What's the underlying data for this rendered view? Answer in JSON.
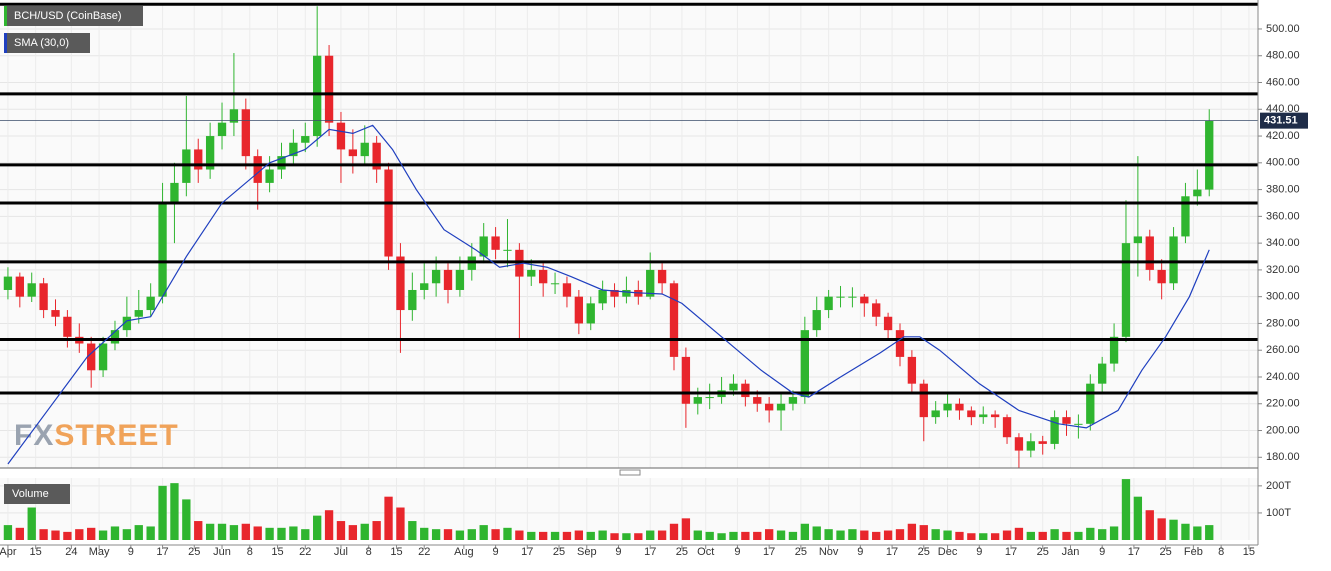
{
  "chart_data": {
    "type": "candlestick",
    "title": "BCH/USD (CoinBase)",
    "watermark": [
      "FX",
      "STREET"
    ],
    "grid": true,
    "up_color": "#2fb52f",
    "down_color": "#e8262c",
    "level_color": "#000000",
    "xlim": [
      -2,
      315.3
    ],
    "xticks": [
      {
        "value": 0,
        "label": "Apr"
      },
      {
        "value": 7,
        "label": "15"
      },
      {
        "value": 16,
        "label": "24"
      },
      {
        "value": 23,
        "label": "May"
      },
      {
        "value": 31,
        "label": "9"
      },
      {
        "value": 39,
        "label": "17"
      },
      {
        "value": 47,
        "label": "25"
      },
      {
        "value": 54,
        "label": "Jun"
      },
      {
        "value": 61,
        "label": "8"
      },
      {
        "value": 68,
        "label": "15"
      },
      {
        "value": 75,
        "label": "22"
      },
      {
        "value": 84,
        "label": "Jul"
      },
      {
        "value": 91,
        "label": "8"
      },
      {
        "value": 98,
        "label": "15"
      },
      {
        "value": 105,
        "label": "22"
      },
      {
        "value": 115,
        "label": "Aug"
      },
      {
        "value": 123,
        "label": "9"
      },
      {
        "value": 131,
        "label": "17"
      },
      {
        "value": 139,
        "label": "25"
      },
      {
        "value": 146,
        "label": "Sep"
      },
      {
        "value": 154,
        "label": "9"
      },
      {
        "value": 162,
        "label": "17"
      },
      {
        "value": 170,
        "label": "25"
      },
      {
        "value": 176,
        "label": "Oct"
      },
      {
        "value": 184,
        "label": "9"
      },
      {
        "value": 192,
        "label": "17"
      },
      {
        "value": 200,
        "label": "25"
      },
      {
        "value": 207,
        "label": "Nov"
      },
      {
        "value": 215,
        "label": "9"
      },
      {
        "value": 223,
        "label": "17"
      },
      {
        "value": 231,
        "label": "25"
      },
      {
        "value": 237,
        "label": "Dec"
      },
      {
        "value": 245,
        "label": "9"
      },
      {
        "value": 253,
        "label": "17"
      },
      {
        "value": 261,
        "label": "25"
      },
      {
        "value": 268,
        "label": "Jan"
      },
      {
        "value": 276,
        "label": "9"
      },
      {
        "value": 284,
        "label": "17"
      },
      {
        "value": 292,
        "label": "25"
      },
      {
        "value": 299,
        "label": "Feb"
      },
      {
        "value": 306,
        "label": "8"
      },
      {
        "value": 313,
        "label": "15"
      }
    ],
    "ylim": [
      172,
      519.4
    ],
    "yticks": [
      {
        "value": 180,
        "label": "180.00"
      },
      {
        "value": 200,
        "label": "200.00"
      },
      {
        "value": 220,
        "label": "220.00"
      },
      {
        "value": 240,
        "label": "240.00"
      },
      {
        "value": 260,
        "label": "260.00"
      },
      {
        "value": 280,
        "label": "280.00"
      },
      {
        "value": 300,
        "label": "300.00"
      },
      {
        "value": 320,
        "label": "320.00"
      },
      {
        "value": 340,
        "label": "340.00"
      },
      {
        "value": 360,
        "label": "360.00"
      },
      {
        "value": 380,
        "label": "380.00"
      },
      {
        "value": 400,
        "label": "400.00"
      },
      {
        "value": 420,
        "label": "420.00"
      },
      {
        "value": 440,
        "label": "440.00"
      },
      {
        "value": 460,
        "label": "460.00"
      },
      {
        "value": 480,
        "label": "480.00"
      },
      {
        "value": 500,
        "label": "500.00"
      }
    ],
    "levels": [
      518.5,
      451.5,
      398.5,
      370,
      326,
      268,
      228
    ],
    "last_price": 431.51,
    "x": [
      0,
      3,
      6,
      9,
      12,
      15,
      18,
      21,
      24,
      27,
      30,
      33,
      36,
      39,
      42,
      45,
      48,
      51,
      54,
      57,
      60,
      63,
      66,
      69,
      72,
      75,
      78,
      81,
      84,
      87,
      90,
      93,
      96,
      99,
      102,
      105,
      108,
      111,
      114,
      117,
      120,
      123,
      126,
      129,
      132,
      135,
      138,
      141,
      144,
      147,
      150,
      153,
      156,
      159,
      162,
      165,
      168,
      171,
      174,
      177,
      180,
      183,
      186,
      189,
      192,
      195,
      198,
      201,
      204,
      207,
      210,
      213,
      216,
      219,
      222,
      225,
      228,
      231,
      234,
      237,
      240,
      243,
      246,
      249,
      252,
      255,
      258,
      261,
      264,
      267,
      270,
      273,
      276,
      279,
      282,
      285,
      288,
      291,
      294,
      297,
      300,
      303
    ],
    "candles": [
      [
        305,
        322,
        298,
        315
      ],
      [
        315,
        318,
        292,
        300
      ],
      [
        300,
        318,
        296,
        310
      ],
      [
        310,
        314,
        284,
        290
      ],
      [
        290,
        298,
        278,
        285
      ],
      [
        285,
        290,
        262,
        270
      ],
      [
        270,
        280,
        258,
        265
      ],
      [
        265,
        270,
        232,
        245
      ],
      [
        245,
        270,
        240,
        265
      ],
      [
        265,
        282,
        260,
        275
      ],
      [
        275,
        300,
        270,
        285
      ],
      [
        285,
        305,
        280,
        290
      ],
      [
        290,
        310,
        285,
        300
      ],
      [
        300,
        385,
        295,
        370
      ],
      [
        370,
        400,
        340,
        385
      ],
      [
        385,
        450,
        375,
        410
      ],
      [
        410,
        418,
        385,
        395
      ],
      [
        395,
        430,
        388,
        420
      ],
      [
        420,
        445,
        410,
        430
      ],
      [
        430,
        482,
        420,
        440
      ],
      [
        440,
        448,
        395,
        405
      ],
      [
        405,
        410,
        365,
        385
      ],
      [
        385,
        405,
        378,
        395
      ],
      [
        395,
        415,
        388,
        405
      ],
      [
        405,
        425,
        398,
        415
      ],
      [
        415,
        430,
        408,
        420
      ],
      [
        420,
        517,
        412,
        480
      ],
      [
        480,
        488,
        420,
        430
      ],
      [
        430,
        438,
        385,
        410
      ],
      [
        410,
        425,
        392,
        405
      ],
      [
        405,
        428,
        398,
        415
      ],
      [
        415,
        420,
        385,
        395
      ],
      [
        395,
        400,
        320,
        330
      ],
      [
        330,
        340,
        258,
        290
      ],
      [
        290,
        318,
        282,
        305
      ],
      [
        305,
        325,
        298,
        310
      ],
      [
        310,
        330,
        300,
        320
      ],
      [
        320,
        325,
        295,
        305
      ],
      [
        305,
        330,
        300,
        320
      ],
      [
        320,
        340,
        312,
        330
      ],
      [
        330,
        355,
        325,
        345
      ],
      [
        345,
        352,
        328,
        335
      ],
      [
        335,
        358,
        322,
        335
      ],
      [
        335,
        340,
        268,
        315
      ],
      [
        315,
        328,
        308,
        320
      ],
      [
        320,
        325,
        300,
        310
      ],
      [
        310,
        318,
        302,
        310
      ],
      [
        310,
        315,
        292,
        300
      ],
      [
        300,
        305,
        272,
        280
      ],
      [
        280,
        300,
        275,
        295
      ],
      [
        295,
        312,
        290,
        305
      ],
      [
        305,
        310,
        292,
        300
      ],
      [
        300,
        315,
        295,
        305
      ],
      [
        305,
        312,
        294,
        300
      ],
      [
        300,
        333,
        298,
        320
      ],
      [
        320,
        325,
        302,
        310
      ],
      [
        310,
        312,
        245,
        255
      ],
      [
        255,
        262,
        202,
        220
      ],
      [
        220,
        232,
        212,
        225
      ],
      [
        225,
        235,
        216,
        225
      ],
      [
        225,
        240,
        220,
        230
      ],
      [
        230,
        242,
        226,
        235
      ],
      [
        235,
        238,
        218,
        225
      ],
      [
        225,
        230,
        214,
        220
      ],
      [
        220,
        225,
        206,
        215
      ],
      [
        215,
        228,
        200,
        220
      ],
      [
        220,
        230,
        215,
        225
      ],
      [
        225,
        285,
        220,
        275
      ],
      [
        275,
        300,
        270,
        290
      ],
      [
        290,
        305,
        284,
        300
      ],
      [
        300,
        308,
        292,
        300
      ],
      [
        300,
        307,
        292,
        300
      ],
      [
        300,
        302,
        285,
        295
      ],
      [
        295,
        298,
        278,
        285
      ],
      [
        285,
        288,
        268,
        275
      ],
      [
        275,
        280,
        248,
        255
      ],
      [
        255,
        260,
        228,
        235
      ],
      [
        235,
        238,
        192,
        210
      ],
      [
        210,
        222,
        205,
        215
      ],
      [
        215,
        228,
        210,
        220
      ],
      [
        220,
        224,
        208,
        215
      ],
      [
        215,
        218,
        204,
        210
      ],
      [
        210,
        218,
        205,
        212
      ],
      [
        212,
        215,
        202,
        210
      ],
      [
        210,
        212,
        190,
        195
      ],
      [
        195,
        198,
        172,
        185
      ],
      [
        185,
        198,
        180,
        192
      ],
      [
        192,
        196,
        182,
        190
      ],
      [
        190,
        215,
        186,
        210
      ],
      [
        210,
        215,
        196,
        205
      ],
      [
        205,
        212,
        194,
        205
      ],
      [
        205,
        242,
        200,
        235
      ],
      [
        235,
        255,
        228,
        250
      ],
      [
        250,
        280,
        244,
        270
      ],
      [
        270,
        372,
        266,
        340
      ],
      [
        340,
        405,
        315,
        345
      ],
      [
        345,
        350,
        312,
        320
      ],
      [
        320,
        328,
        298,
        310
      ],
      [
        310,
        352,
        305,
        345
      ],
      [
        345,
        385,
        340,
        375
      ],
      [
        375,
        395,
        368,
        380
      ],
      [
        380,
        440,
        375,
        431.51
      ]
    ],
    "sma": {
      "name": "SMA (30,0)",
      "color": "#1f3fbf",
      "x": [
        0,
        10,
        20,
        30,
        36,
        45,
        54,
        66,
        75,
        81,
        87,
        92,
        97,
        103,
        110,
        118,
        124,
        130,
        136,
        142,
        150,
        158,
        165,
        170,
        180,
        190,
        198,
        202,
        210,
        220,
        226,
        230,
        235,
        245,
        255,
        265,
        272,
        280,
        286,
        292,
        298,
        303
      ],
      "values": [
        175,
        215,
        255,
        282,
        285,
        330,
        370,
        400,
        410,
        425,
        422,
        428,
        410,
        380,
        350,
        335,
        322,
        325,
        322,
        315,
        305,
        303,
        302,
        295,
        270,
        245,
        228,
        225,
        240,
        258,
        270,
        270,
        260,
        235,
        215,
        205,
        202,
        215,
        245,
        270,
        300,
        335
      ]
    },
    "volume": {
      "name": "Volume",
      "ylim": [
        0,
        229
      ],
      "yticks": [
        {
          "value": 200,
          "label": "200T"
        },
        {
          "value": 100,
          "label": "100T"
        }
      ],
      "values": [
        55,
        45,
        120,
        40,
        35,
        30,
        40,
        45,
        35,
        50,
        40,
        55,
        50,
        200,
        210,
        150,
        70,
        60,
        60,
        55,
        60,
        50,
        45,
        45,
        50,
        40,
        90,
        110,
        70,
        55,
        60,
        70,
        160,
        120,
        70,
        45,
        40,
        40,
        35,
        40,
        55,
        40,
        45,
        35,
        30,
        30,
        30,
        30,
        35,
        30,
        35,
        25,
        25,
        25,
        35,
        35,
        60,
        80,
        35,
        30,
        25,
        30,
        30,
        30,
        40,
        35,
        30,
        60,
        50,
        40,
        35,
        40,
        35,
        30,
        35,
        40,
        60,
        55,
        40,
        35,
        30,
        25,
        25,
        25,
        35,
        45,
        30,
        30,
        40,
        30,
        30,
        45,
        40,
        50,
        225,
        160,
        110,
        80,
        75,
        60,
        50,
        55
      ]
    }
  }
}
